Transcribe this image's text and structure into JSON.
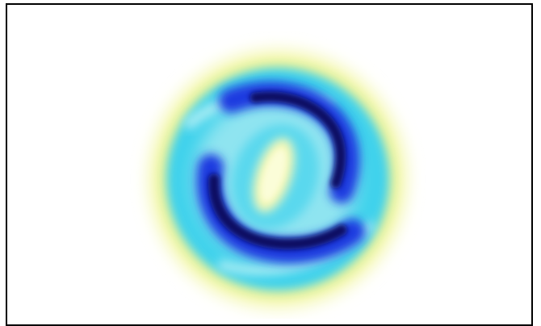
{
  "image": {
    "subject": "blurred-swirl-intensity-pattern",
    "colors": {
      "background": "#ffffff",
      "frame": "#000000",
      "outer_halo": "#f3f7a6",
      "ring": "#38d4ee",
      "ring_inner": "#8ee6f2",
      "arm_blue": "#1030d8",
      "arm_core": "#0a0e58",
      "center": "#f2f6b0"
    }
  }
}
